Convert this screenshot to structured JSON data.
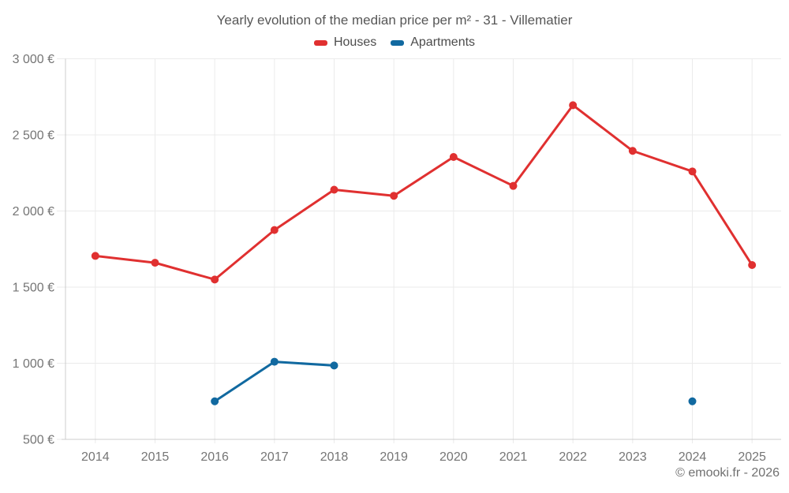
{
  "footer": "© emooki.fr - 2026",
  "colors": {
    "houses": "#e03030",
    "apartments": "#1169a0",
    "title_text": "#575757",
    "legend_text": "#4c4c4c",
    "axis_text": "#757575",
    "grid": "#ebebeb",
    "axis_line": "#cccccc",
    "background": "#ffffff"
  },
  "chart_data": {
    "type": "line",
    "title": "Yearly evolution of the median price per m² - 31 - Villematier",
    "x": [
      "2014",
      "2015",
      "2016",
      "2017",
      "2018",
      "2019",
      "2020",
      "2021",
      "2022",
      "2023",
      "2024",
      "2025"
    ],
    "series": [
      {
        "name": "Houses",
        "color": "#e03030",
        "values": [
          1705,
          1660,
          1550,
          1875,
          2140,
          2100,
          2355,
          2165,
          2695,
          2395,
          2260,
          1645
        ]
      },
      {
        "name": "Apartments",
        "color": "#1169a0",
        "values": [
          null,
          null,
          750,
          1010,
          985,
          null,
          null,
          null,
          null,
          null,
          750,
          null
        ]
      }
    ],
    "xlabel": "",
    "ylabel": "",
    "ylim": [
      500,
      3000
    ],
    "yticks": [
      500,
      1000,
      1500,
      2000,
      2500,
      3000
    ],
    "ytick_labels": [
      "500 €",
      "1 000 €",
      "1 500 €",
      "2 000 €",
      "2 500 €",
      "3 000 €"
    ],
    "currency": "€",
    "grid": true,
    "legend_position": "top",
    "marker": "circle"
  }
}
